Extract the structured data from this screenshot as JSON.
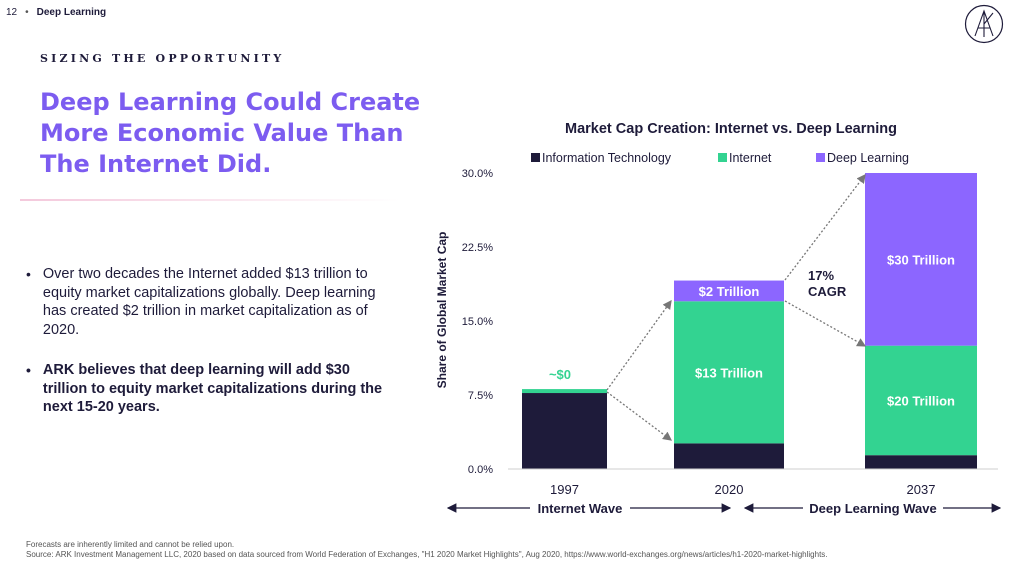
{
  "header": {
    "page_number": "12",
    "separator": "•",
    "section": "Deep Learning"
  },
  "kicker": "SIZING THE OPPORTUNITY",
  "headline": [
    "Deep Learning Could Create",
    "More Economic Value Than",
    "The Internet Did."
  ],
  "bullets": [
    "Over two decades the Internet added $13 trillion to equity market capitalizations globally. Deep learning has created $2 trillion in market capitalization as of 2020.",
    "ARK believes that deep learning will add $30 trillion to equity market capitalizations during the next 15-20 years."
  ],
  "footer": {
    "line1": "Forecasts are inherently limited and cannot be relied upon.",
    "line2": "Source: ARK Investment Management LLC, 2020 based on data sourced from World Federation of Exchanges, \"H1 2020 Market Highlights\", Aug 2020, https://www.world-exchanges.org/news/articles/h1-2020-market-highlights."
  },
  "colors": {
    "accent": "#7c5cf0",
    "information_technology": "#1e1b3a",
    "internet": "#33d391",
    "deep_learning": "#8c66ff"
  },
  "chart_data": {
    "type": "bar",
    "stacked": true,
    "title": "Market Cap Creation: Internet vs. Deep Learning",
    "ylabel": "Share of Global Market Cap",
    "ylim": [
      0,
      30
    ],
    "yticks": [
      "0.0%",
      "7.5%",
      "15.0%",
      "22.5%",
      "30.0%"
    ],
    "ytick_values": [
      0,
      7.5,
      15,
      22.5,
      30
    ],
    "categories": [
      "1997",
      "2020",
      "2037"
    ],
    "series": [
      {
        "name": "Information Technology",
        "values": [
          7.7,
          2.6,
          1.4
        ],
        "labels": [
          "",
          "",
          ""
        ]
      },
      {
        "name": "Internet",
        "values": [
          0.4,
          14.4,
          11.1
        ],
        "labels": [
          "",
          "$13 Trillion",
          "$20 Trillion"
        ]
      },
      {
        "name": "Deep Learning",
        "values": [
          0.0,
          2.1,
          17.5
        ],
        "labels": [
          "",
          "$2 Trillion",
          "$30 Trillion"
        ]
      }
    ],
    "annotations": {
      "approx_zero": "~$0",
      "cagr": [
        "17%",
        "CAGR"
      ]
    },
    "waves": [
      "Internet Wave",
      "Deep Learning Wave"
    ],
    "legend_position": "top"
  }
}
